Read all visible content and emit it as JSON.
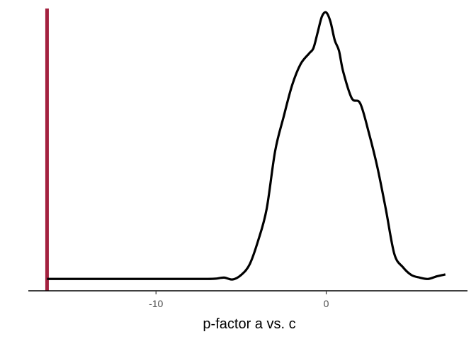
{
  "chart_data": {
    "type": "line",
    "title": "",
    "xlabel": "p-factor a vs. c",
    "ylabel": "",
    "xlim": [
      -17.5,
      8.3
    ],
    "ylim": [
      0,
      1.07
    ],
    "grid": false,
    "legend": "none",
    "x_ticks": [
      -10,
      0
    ],
    "x_tick_labels": [
      "-10",
      "0"
    ],
    "reference_line": {
      "x": -16.4,
      "color": "#a3213f"
    },
    "series": [
      {
        "color": "#000000",
        "x": [
          -16.4,
          -14,
          -12,
          -10,
          -8,
          -7,
          -6.5,
          -6,
          -5.5,
          -5,
          -4.5,
          -4,
          -3.5,
          -3,
          -2.5,
          -2,
          -1.5,
          -1,
          -0.75,
          -0.5,
          -0.25,
          0,
          0.25,
          0.5,
          0.75,
          1,
          1.5,
          2,
          2.5,
          3,
          3.5,
          4,
          4.5,
          5,
          5.5,
          6,
          6.5,
          7
        ],
        "y": [
          0.045,
          0.045,
          0.045,
          0.045,
          0.045,
          0.045,
          0.046,
          0.05,
          0.043,
          0.06,
          0.1,
          0.19,
          0.31,
          0.53,
          0.66,
          0.78,
          0.86,
          0.9,
          0.92,
          0.98,
          1.04,
          1.055,
          1.02,
          0.95,
          0.91,
          0.83,
          0.73,
          0.71,
          0.6,
          0.47,
          0.31,
          0.14,
          0.09,
          0.06,
          0.05,
          0.045,
          0.055,
          0.062
        ]
      }
    ]
  }
}
